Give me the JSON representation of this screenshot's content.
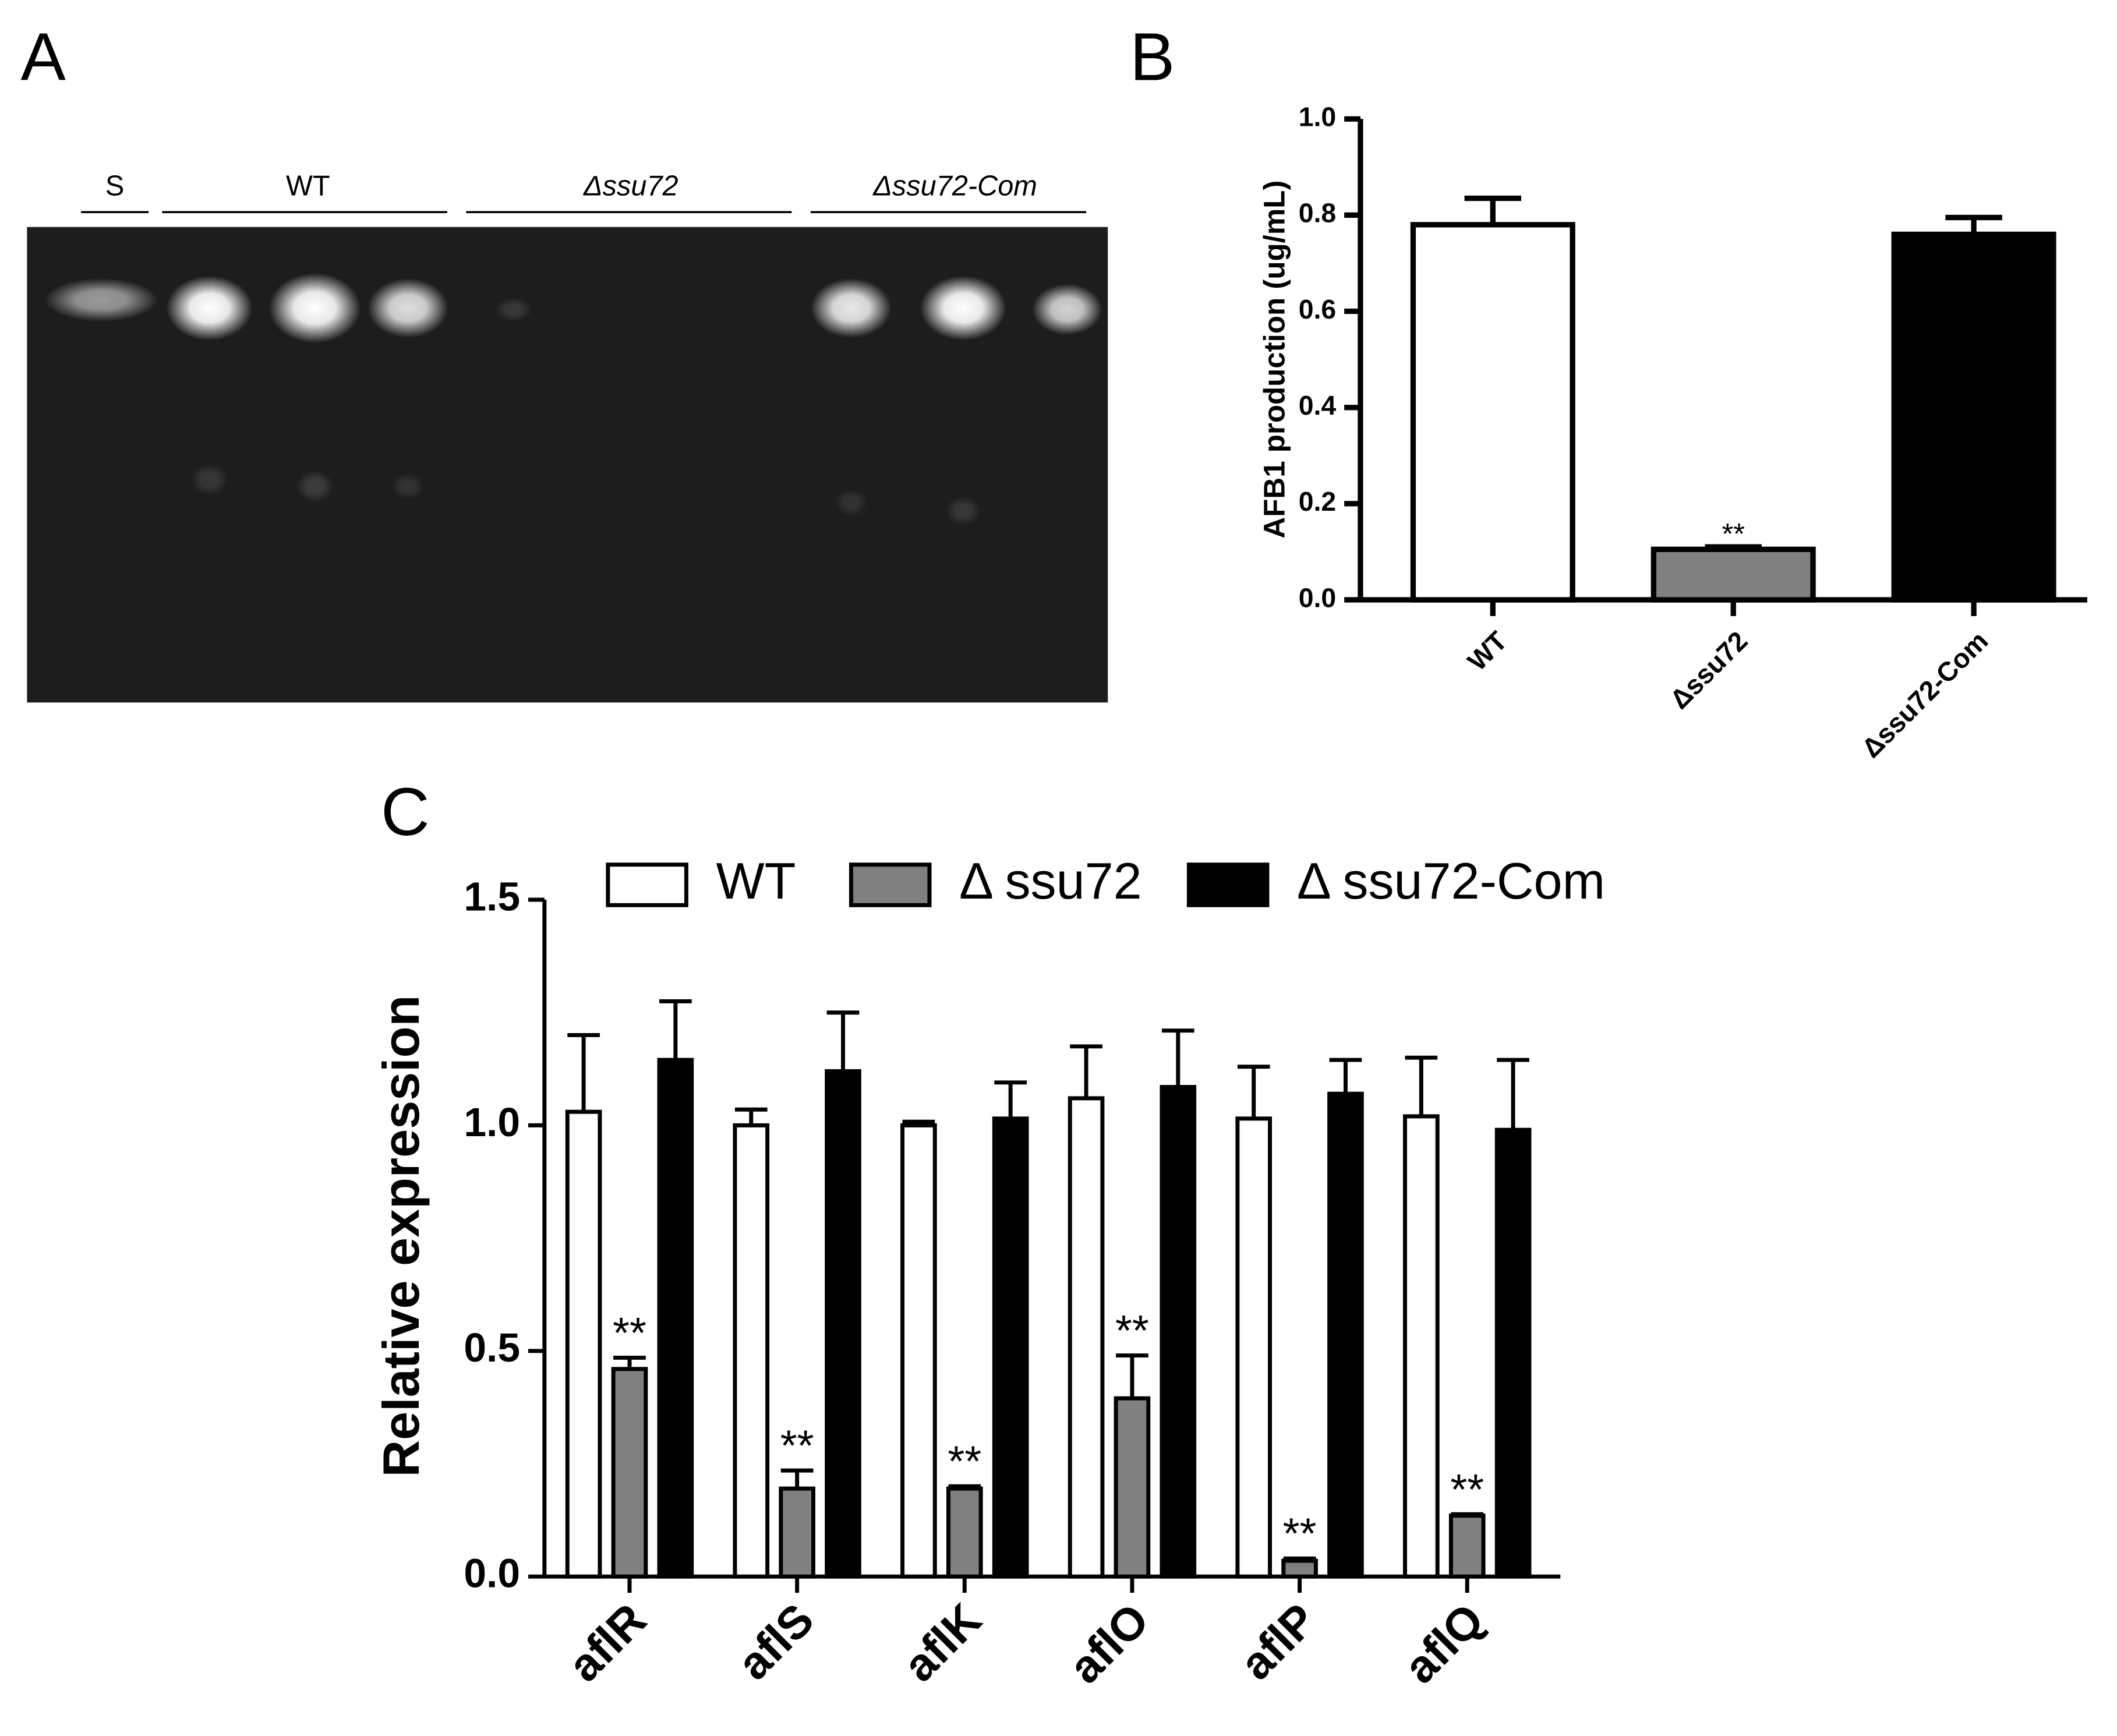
{
  "gel": {
    "panel_label": "A",
    "lanes": [
      "S",
      "WT",
      "Δssu72",
      "Δssu72-Com"
    ]
  },
  "chart_data": [
    {
      "type": "bar",
      "panel_label": "B",
      "ylabel": "AFB1 production (ug/mL)",
      "categories": [
        "WT",
        "Δssu72",
        "Δssu72-Com"
      ],
      "values": [
        0.78,
        0.105,
        0.76
      ],
      "errors": [
        0.055,
        0.005,
        0.035
      ],
      "colors": [
        "#ffffff",
        "#808080",
        "#000000"
      ],
      "significance": [
        null,
        "**",
        null
      ],
      "ylim": [
        0,
        1
      ],
      "yticks": [
        {
          "value": 0,
          "label": "0.0"
        },
        0.2,
        0.4,
        0.6,
        0.8,
        {
          "value": 1,
          "label": "1.0"
        }
      ]
    },
    {
      "type": "grouped_bar",
      "panel_label": "C",
      "ylabel": "Relative expression",
      "categories": [
        "aflR",
        "aflS",
        "aflK",
        "aflO",
        "aflP",
        "aflQ"
      ],
      "series": [
        {
          "name": "WT",
          "color": "#ffffff",
          "values": [
            1.03,
            1.0,
            1.0,
            1.06,
            1.015,
            1.02
          ],
          "errors": [
            0.17,
            0.035,
            0.008,
            0.115,
            0.115,
            0.13
          ]
        },
        {
          "name": "Δ ssu72",
          "color": "#808080",
          "values": [
            0.46,
            0.195,
            0.195,
            0.395,
            0.035,
            0.135
          ],
          "errors": [
            0.025,
            0.04,
            0.005,
            0.095,
            0.005,
            0.003
          ],
          "significance": [
            "**",
            "**",
            "**",
            "**",
            "**",
            "**"
          ]
        },
        {
          "name": "Δ ssu72-Com",
          "color": "#000000",
          "values": [
            1.145,
            1.12,
            1.015,
            1.085,
            1.07,
            0.99
          ],
          "errors": [
            0.13,
            0.13,
            0.08,
            0.125,
            0.075,
            0.155
          ]
        }
      ],
      "ylim": [
        0,
        1.5
      ],
      "yticks": [
        {
          "value": 0,
          "label": "0.0"
        },
        {
          "value": 0.5,
          "label": "0.5"
        },
        {
          "value": 1,
          "label": "1.0"
        },
        {
          "value": 1.5,
          "label": "1.5"
        }
      ],
      "legend": "top"
    }
  ]
}
